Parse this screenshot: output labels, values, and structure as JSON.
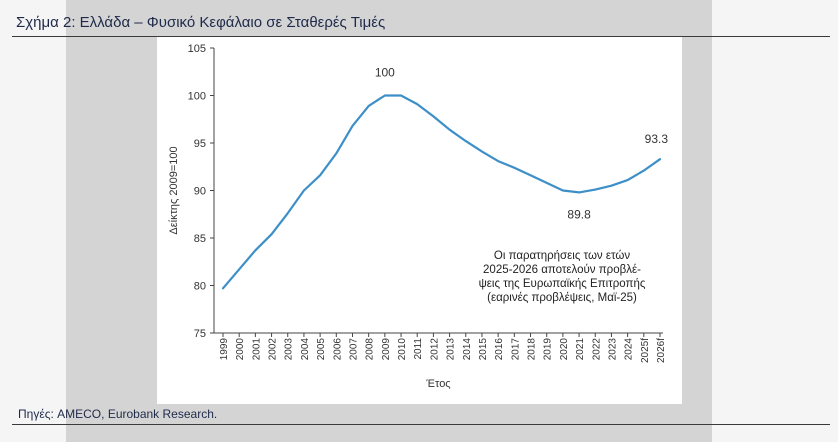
{
  "figure": {
    "title": "Σχήμα 2: Ελλάδα – Φυσικό Κεφάλαιο σε Σταθερές Τιμές",
    "source": "Πηγές: AMECO, Eurobank Research."
  },
  "chart_data": {
    "type": "line",
    "title": "",
    "xlabel": "Έτος",
    "ylabel": "Δείκτης 2009=100",
    "ylim": [
      75,
      105
    ],
    "yticks": [
      75,
      80,
      85,
      90,
      95,
      100,
      105
    ],
    "grid": false,
    "categories": [
      "1999",
      "2000",
      "2001",
      "2002",
      "2003",
      "2004",
      "2005",
      "2006",
      "2007",
      "2008",
      "2009",
      "2010",
      "2011",
      "2012",
      "2013",
      "2014",
      "2015",
      "2016",
      "2017",
      "2018",
      "2019",
      "2020",
      "2021",
      "2022",
      "2023",
      "2024",
      "2025f",
      "2026f"
    ],
    "series": [
      {
        "values": [
          79.7,
          81.7,
          83.7,
          85.4,
          87.6,
          90.0,
          91.6,
          93.9,
          96.8,
          98.9,
          100.0,
          100.0,
          99.1,
          97.8,
          96.4,
          95.2,
          94.1,
          93.1,
          92.4,
          91.6,
          90.8,
          90.0,
          89.8,
          90.1,
          90.5,
          91.1,
          92.1,
          93.3
        ],
        "color": "#3d8fc8"
      }
    ],
    "data_labels": [
      {
        "category": "2009",
        "text": "100"
      },
      {
        "category": "2021",
        "text": "89.8"
      },
      {
        "category": "2026f",
        "text": "93.3"
      }
    ],
    "annotation": [
      "Οι παρατηρήσεις των ετών",
      "2025-2026 αποτελούν προβλέ-",
      "ψεις της Ευρωπαϊκής Επιτροπής",
      "(εαρινές προβλέψεις, Μαϊ-25)"
    ]
  }
}
